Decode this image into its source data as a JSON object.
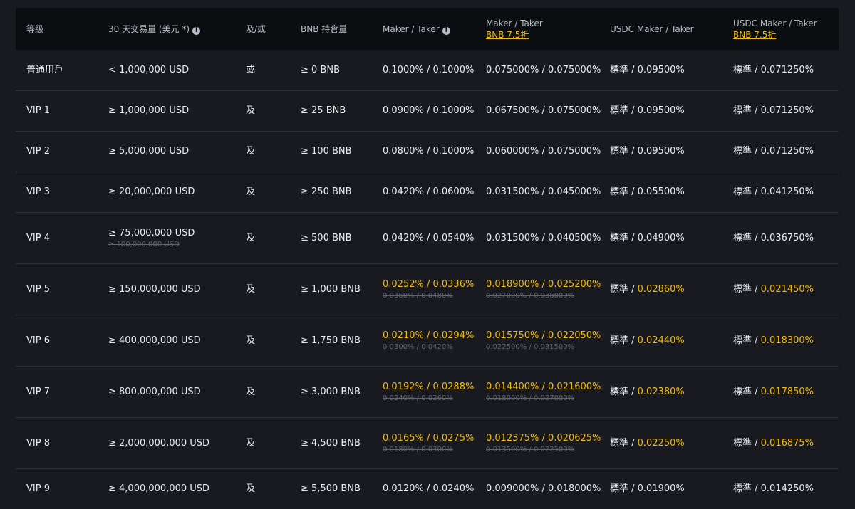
{
  "colors": {
    "background": "#181a20",
    "header_bg": "#0b0e11",
    "accent": "#f0b90b",
    "divider": "#2b3139"
  },
  "header": {
    "level": "等級",
    "volume": "30 天交易量 (美元 *)",
    "andor": "及/或",
    "bnb": "BNB 持倉量",
    "maker_taker": "Maker / Taker",
    "maker_taker_bnb": "Maker / Taker",
    "maker_taker_bnb_sub": "BNB 7.5折",
    "usdc": "USDC Maker / Taker",
    "usdc_bnb": "USDC Maker / Taker",
    "usdc_bnb_sub": "BNB 7.5折",
    "info_icon": "info-icon"
  },
  "rows": [
    {
      "level": "普通用戶",
      "volume": "< 1,000,000 USD",
      "volume_old": "",
      "andor": "或",
      "bnb": "≥ 0 BNB",
      "fee": "0.1000% / 0.1000%",
      "fee_old": "",
      "fee_bnb": "0.075000% / 0.075000%",
      "fee_bnb_old": "",
      "usdc_std": "標準 / ",
      "usdc": "0.09500%",
      "usdc_bnb_std": "標準 / ",
      "usdc_bnb": "0.071250%"
    },
    {
      "level": "VIP 1",
      "volume": "≥ 1,000,000 USD",
      "volume_old": "",
      "andor": "及",
      "bnb": "≥ 25 BNB",
      "fee": "0.0900% / 0.1000%",
      "fee_old": "",
      "fee_bnb": "0.067500% / 0.075000%",
      "fee_bnb_old": "",
      "usdc_std": "標準 / ",
      "usdc": "0.09500%",
      "usdc_bnb_std": "標準 / ",
      "usdc_bnb": "0.071250%"
    },
    {
      "level": "VIP 2",
      "volume": "≥ 5,000,000 USD",
      "volume_old": "",
      "andor": "及",
      "bnb": "≥ 100 BNB",
      "fee": "0.0800% / 0.1000%",
      "fee_old": "",
      "fee_bnb": "0.060000% / 0.075000%",
      "fee_bnb_old": "",
      "usdc_std": "標準 / ",
      "usdc": "0.09500%",
      "usdc_bnb_std": "標準 / ",
      "usdc_bnb": "0.071250%"
    },
    {
      "level": "VIP 3",
      "volume": "≥ 20,000,000 USD",
      "volume_old": "",
      "andor": "及",
      "bnb": "≥ 250 BNB",
      "fee": "0.0420% / 0.0600%",
      "fee_old": "",
      "fee_bnb": "0.031500% / 0.045000%",
      "fee_bnb_old": "",
      "usdc_std": "標準 / ",
      "usdc": "0.05500%",
      "usdc_bnb_std": "標準 / ",
      "usdc_bnb": "0.041250%"
    },
    {
      "level": "VIP 4",
      "volume": "≥ 75,000,000 USD",
      "volume_old": "≥ 100,000,000 USD",
      "andor": "及",
      "bnb": "≥ 500 BNB",
      "fee": "0.0420% / 0.0540%",
      "fee_old": "",
      "fee_bnb": "0.031500% / 0.040500%",
      "fee_bnb_old": "",
      "usdc_std": "標準 / ",
      "usdc": "0.04900%",
      "usdc_bnb_std": "標準 / ",
      "usdc_bnb": "0.036750%"
    },
    {
      "level": "VIP 5",
      "volume": "≥ 150,000,000 USD",
      "volume_old": "",
      "andor": "及",
      "bnb": "≥ 1,000 BNB",
      "fee": "0.0252% / 0.0336%",
      "fee_old": "0.0360% / 0.0480%",
      "fee_bnb": "0.018900% / 0.025200%",
      "fee_bnb_old": "0.027000% / 0.036000%",
      "usdc_std": "標準 / ",
      "usdc": "0.02860%",
      "usdc_bnb_std": "標準 / ",
      "usdc_bnb": "0.021450%"
    },
    {
      "level": "VIP 6",
      "volume": "≥ 400,000,000 USD",
      "volume_old": "",
      "andor": "及",
      "bnb": "≥ 1,750 BNB",
      "fee": "0.0210% / 0.0294%",
      "fee_old": "0.0300% / 0.0420%",
      "fee_bnb": "0.015750% / 0.022050%",
      "fee_bnb_old": "0.022500% / 0.031500%",
      "usdc_std": "標準 / ",
      "usdc": "0.02440%",
      "usdc_bnb_std": "標準 / ",
      "usdc_bnb": "0.018300%"
    },
    {
      "level": "VIP 7",
      "volume": "≥ 800,000,000 USD",
      "volume_old": "",
      "andor": "及",
      "bnb": "≥ 3,000 BNB",
      "fee": "0.0192% / 0.0288%",
      "fee_old": "0.0240% / 0.0360%",
      "fee_bnb": "0.014400% / 0.021600%",
      "fee_bnb_old": "0.018000% / 0.027000%",
      "usdc_std": "標準 / ",
      "usdc": "0.02380%",
      "usdc_bnb_std": "標準 / ",
      "usdc_bnb": "0.017850%"
    },
    {
      "level": "VIP 8",
      "volume": "≥ 2,000,000,000 USD",
      "volume_old": "",
      "andor": "及",
      "bnb": "≥ 4,500 BNB",
      "fee": "0.0165% / 0.0275%",
      "fee_old": "0.0180% / 0.0300%",
      "fee_bnb": "0.012375% / 0.020625%",
      "fee_bnb_old": "0.013500% / 0.022500%",
      "usdc_std": "標準 / ",
      "usdc": "0.02250%",
      "usdc_bnb_std": "標準 / ",
      "usdc_bnb": "0.016875%"
    },
    {
      "level": "VIP 9",
      "volume": "≥ 4,000,000,000 USD",
      "volume_old": "",
      "andor": "及",
      "bnb": "≥ 5,500 BNB",
      "fee": "0.0120% / 0.0240%",
      "fee_old": "",
      "fee_bnb": "0.009000% / 0.018000%",
      "fee_bnb_old": "",
      "usdc_std": "標準 / ",
      "usdc": "0.01900%",
      "usdc_bnb_std": "標準 / ",
      "usdc_bnb": "0.014250%"
    }
  ]
}
